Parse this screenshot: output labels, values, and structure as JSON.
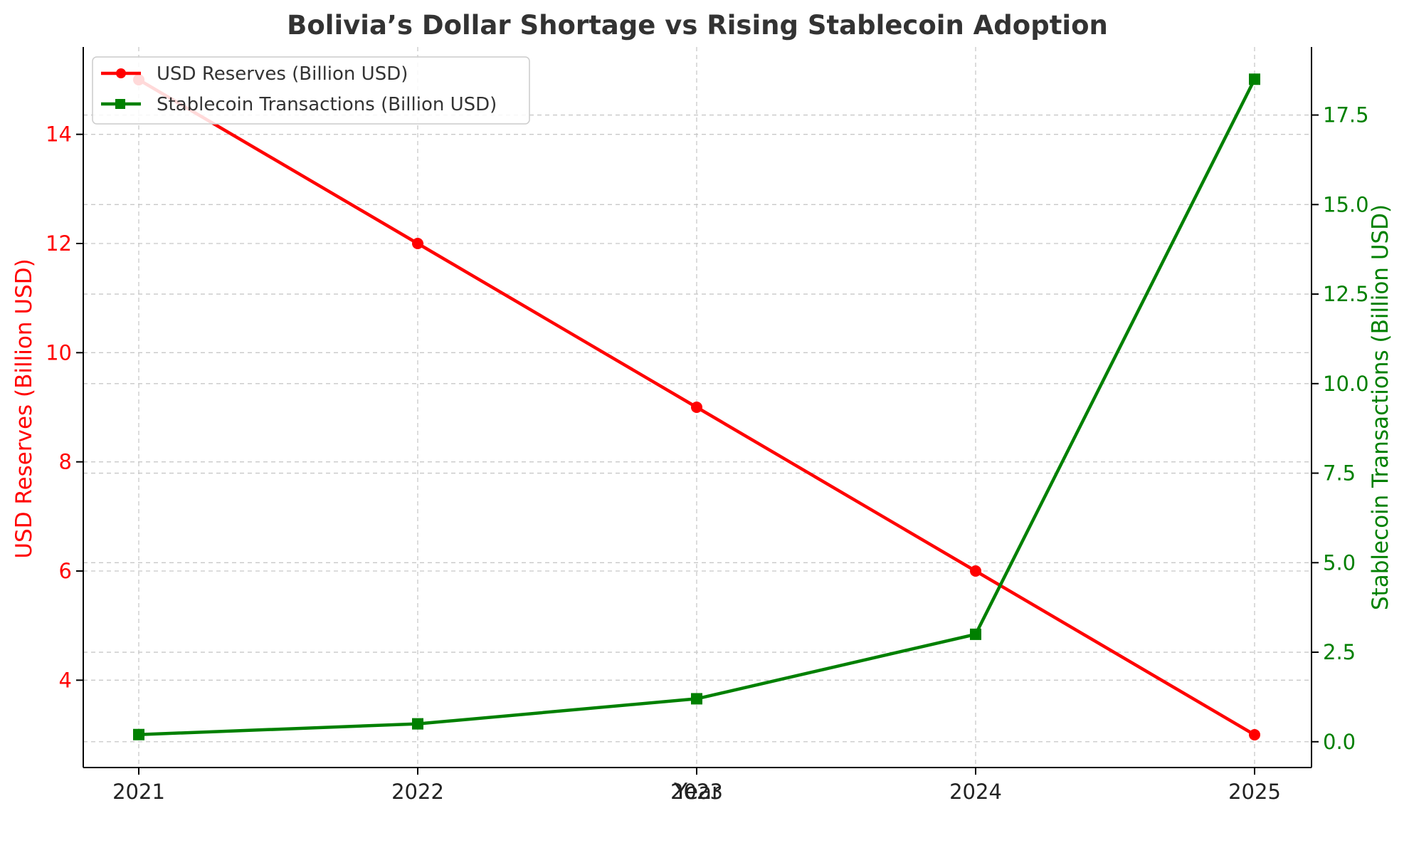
{
  "chart_data": {
    "type": "line",
    "title": "Bolivia’s Dollar Shortage vs Rising Stablecoin Adoption",
    "xlabel": "Year",
    "ylabel_left": "USD Reserves (Billion USD)",
    "ylabel_right": "Stablecoin Transactions (Billion USD)",
    "categories": [
      "2021",
      "2022",
      "2023",
      "2024",
      "2025"
    ],
    "y_left_lim": [
      2.4,
      15.6
    ],
    "y_right_lim": [
      -0.72,
      19.4
    ],
    "y_left_ticks": [
      4,
      6,
      8,
      10,
      12,
      14
    ],
    "y_left_tick_labels": [
      "4",
      "6",
      "8",
      "10",
      "12",
      "14"
    ],
    "y_right_ticks": [
      0,
      2.5,
      5,
      7.5,
      10,
      12.5,
      15,
      17.5
    ],
    "y_right_tick_labels": [
      "0.0",
      "2.5",
      "5.0",
      "7.5",
      "10.0",
      "12.5",
      "15.0",
      "17.5"
    ],
    "grid": true,
    "legend_position": "top-left",
    "series": [
      {
        "name": "USD Reserves (Billion USD)",
        "axis": "left",
        "color": "#ff0000",
        "marker": "circle",
        "values": [
          15,
          12,
          9,
          6,
          3
        ]
      },
      {
        "name": "Stablecoin Transactions (Billion USD)",
        "axis": "right",
        "color": "#008000",
        "marker": "square",
        "values": [
          0.2,
          0.5,
          1.2,
          3.0,
          18.5
        ]
      }
    ]
  }
}
